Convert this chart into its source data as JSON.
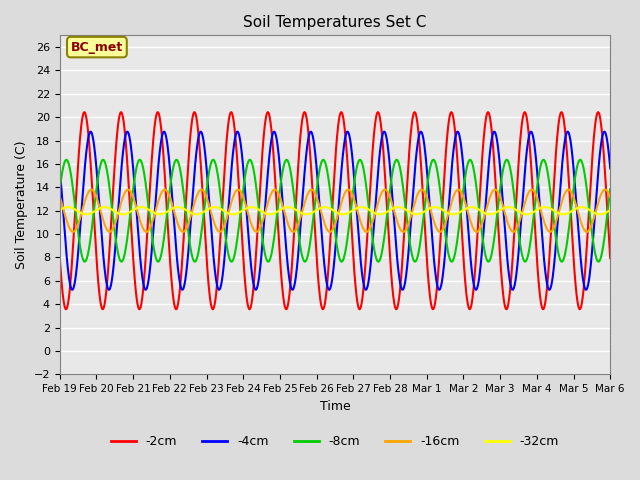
{
  "title": "Soil Temperatures Set C",
  "xlabel": "Time",
  "ylabel": "Soil Temperature (C)",
  "ylim": [
    -2,
    27
  ],
  "yticks": [
    -2,
    0,
    2,
    4,
    6,
    8,
    10,
    12,
    14,
    16,
    18,
    20,
    22,
    24,
    26
  ],
  "annotation": "BC_met",
  "annotation_color": "#8B0000",
  "annotation_bg": "#FFFF99",
  "bg_color": "#E8E8E8",
  "series": [
    {
      "label": "-2cm",
      "color": "#FF0000",
      "lw": 1.5
    },
    {
      "label": "-4cm",
      "color": "#0000FF",
      "lw": 1.5
    },
    {
      "label": "-8cm",
      "color": "#00CC00",
      "lw": 1.5
    },
    {
      "label": "-16cm",
      "color": "#FFA500",
      "lw": 1.5
    },
    {
      "label": "-32cm",
      "color": "#FFFF00",
      "lw": 1.5
    }
  ],
  "xtick_labels": [
    "Feb 19",
    "Feb 20",
    "Feb 21",
    "Feb 22",
    "Feb 23",
    "Feb 24",
    "Feb 25",
    "Feb 26",
    "Feb 27",
    "Feb 28",
    "Mar 1",
    "Mar 2",
    "Mar 3",
    "Mar 4",
    "Mar 5",
    "Mar 6"
  ],
  "figsize": [
    6.4,
    4.8
  ],
  "dpi": 100
}
